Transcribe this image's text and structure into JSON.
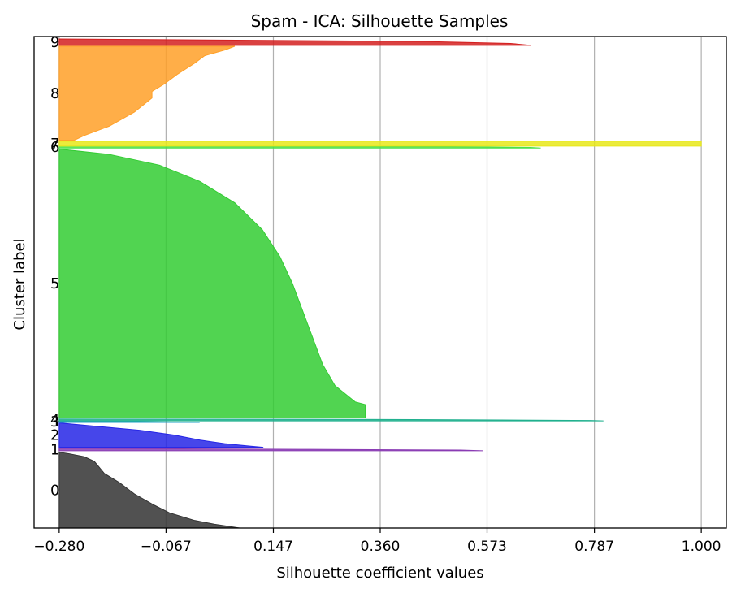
{
  "chart_data": {
    "type": "silhouette",
    "title": "Spam - ICA: Silhouette Samples",
    "xlabel": "Silhouette coefficient values",
    "ylabel": "Cluster label",
    "xlim": [
      -0.33,
      1.05
    ],
    "x_ticks": [
      -0.28,
      -0.067,
      0.147,
      0.36,
      0.573,
      0.787,
      1.0
    ],
    "x_tick_labels": [
      "−0.280",
      "−0.067",
      "0.147",
      "0.360",
      "0.573",
      "0.787",
      "1.000"
    ],
    "grid_x": true,
    "baseline": -0.28,
    "clusters": [
      {
        "label": "0",
        "color": "#333333",
        "y_range": [
          0.0,
          0.155
        ],
        "profile": [
          [
            0.0,
            0.08
          ],
          [
            0.02,
            0.06
          ],
          [
            0.05,
            0.03
          ],
          [
            0.1,
            -0.01
          ],
          [
            0.2,
            -0.06
          ],
          [
            0.3,
            -0.09
          ],
          [
            0.45,
            -0.13
          ],
          [
            0.6,
            -0.16
          ],
          [
            0.72,
            -0.19
          ],
          [
            0.8,
            -0.2
          ],
          [
            0.88,
            -0.21
          ],
          [
            0.94,
            -0.23
          ],
          [
            0.98,
            -0.26
          ],
          [
            1.0,
            -0.28
          ]
        ]
      },
      {
        "label": "1",
        "color": "#8a3cb4",
        "y_range": [
          0.158,
          0.163
        ],
        "profile": [
          [
            0.0,
            0.565
          ],
          [
            0.3,
            0.52
          ],
          [
            0.6,
            0.2
          ],
          [
            1.0,
            -0.28
          ]
        ]
      },
      {
        "label": "2",
        "color": "#2626e6",
        "y_range": [
          0.165,
          0.215
        ],
        "profile": [
          [
            0.0,
            0.127
          ],
          [
            0.05,
            0.1
          ],
          [
            0.15,
            0.05
          ],
          [
            0.3,
            0.0
          ],
          [
            0.5,
            -0.05
          ],
          [
            0.7,
            -0.12
          ],
          [
            0.85,
            -0.2
          ],
          [
            1.0,
            -0.28
          ]
        ]
      },
      {
        "label": "3",
        "color": "#22a0c8",
        "y_range": [
          0.216,
          0.219
        ],
        "profile": [
          [
            0.0,
            0.0
          ],
          [
            0.5,
            -0.1
          ],
          [
            1.0,
            -0.28
          ]
        ]
      },
      {
        "label": "4",
        "color": "#20b08e",
        "y_range": [
          0.219,
          0.223
        ],
        "profile": [
          [
            0.0,
            0.805
          ],
          [
            0.2,
            0.78
          ],
          [
            0.5,
            0.6
          ],
          [
            0.8,
            0.3
          ],
          [
            1.0,
            -0.28
          ]
        ]
      },
      {
        "label": "5",
        "color": "#33cc33",
        "y_range": [
          0.225,
          0.775
        ],
        "profile": [
          [
            0.0,
            0.33
          ],
          [
            0.05,
            0.33
          ],
          [
            0.06,
            0.31
          ],
          [
            0.12,
            0.27
          ],
          [
            0.2,
            0.245
          ],
          [
            0.3,
            0.225
          ],
          [
            0.4,
            0.205
          ],
          [
            0.5,
            0.185
          ],
          [
            0.6,
            0.16
          ],
          [
            0.7,
            0.125
          ],
          [
            0.8,
            0.07
          ],
          [
            0.88,
            0.0
          ],
          [
            0.94,
            -0.08
          ],
          [
            0.98,
            -0.18
          ],
          [
            1.0,
            -0.28
          ]
        ]
      },
      {
        "label": "6",
        "color": "#4ae04a",
        "y_range": [
          0.777,
          0.781
        ],
        "profile": [
          [
            0.0,
            0.68
          ],
          [
            0.3,
            0.66
          ],
          [
            0.7,
            0.5
          ],
          [
            1.0,
            -0.28
          ]
        ]
      },
      {
        "label": "7",
        "color": "#e8e81a",
        "y_range": [
          0.781,
          0.791
        ],
        "profile": [
          [
            0.0,
            1.0
          ],
          [
            1.0,
            1.0
          ]
        ]
      },
      {
        "label": "8",
        "color": "#ffa028",
        "y_range": [
          0.793,
          0.985
        ],
        "profile": [
          [
            0.0,
            -0.25
          ],
          [
            0.05,
            -0.23
          ],
          [
            0.15,
            -0.18
          ],
          [
            0.3,
            -0.13
          ],
          [
            0.45,
            -0.095
          ],
          [
            0.52,
            -0.095
          ],
          [
            0.6,
            -0.07
          ],
          [
            0.7,
            -0.045
          ],
          [
            0.82,
            -0.01
          ],
          [
            0.9,
            0.01
          ],
          [
            0.96,
            0.05
          ],
          [
            1.0,
            0.07
          ]
        ]
      },
      {
        "label": "9",
        "color": "#d42020",
        "y_range": [
          0.987,
          1.0
        ],
        "profile": [
          [
            0.0,
            0.66
          ],
          [
            0.3,
            0.62
          ],
          [
            0.6,
            0.45
          ],
          [
            0.9,
            -0.1
          ],
          [
            1.0,
            -0.28
          ]
        ]
      }
    ]
  }
}
